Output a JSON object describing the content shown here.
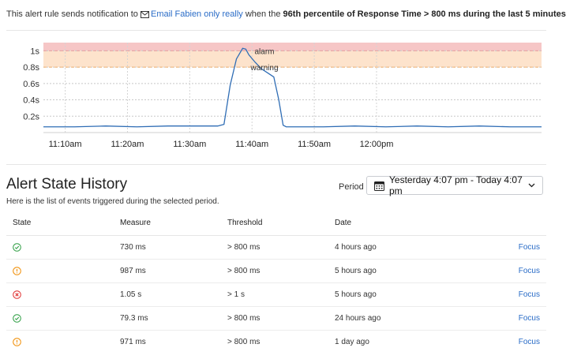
{
  "header": {
    "prefix": "This alert rule sends notification to",
    "channel_icon": "envelope-icon",
    "channel_link": "Email Fabien only really",
    "middle": "when the",
    "condition": "96th percentile of Response Time > 800 ms during the last 5 minutes"
  },
  "chart_data": {
    "type": "line",
    "x_ticks": [
      "11:10am",
      "11:20am",
      "11:30am",
      "11:40am",
      "11:50am",
      "12:00pm"
    ],
    "y_ticks": [
      "0.2s",
      "0.4s",
      "0.6s",
      "0.8s",
      "1s"
    ],
    "ylim": [
      0,
      1.1
    ],
    "grid": true,
    "thresholds": [
      {
        "label": "alarm",
        "value": 1.0,
        "color": "#f6c6c6"
      },
      {
        "label": "warning",
        "value": 0.8,
        "color": "#fde3cc"
      }
    ],
    "series": [
      {
        "color": "#2f6db5",
        "x_minutes": [
          0,
          5,
          10,
          15,
          20,
          25,
          28,
          29,
          30,
          31,
          32,
          32.5,
          33,
          34,
          35,
          36,
          37,
          37.8,
          38.5,
          39,
          45,
          50,
          55,
          60,
          65,
          70,
          75,
          80
        ],
        "y": [
          0.07,
          0.07,
          0.08,
          0.07,
          0.08,
          0.08,
          0.08,
          0.1,
          0.58,
          0.9,
          1.03,
          1.02,
          0.95,
          0.86,
          0.78,
          0.73,
          0.68,
          0.4,
          0.09,
          0.07,
          0.07,
          0.08,
          0.07,
          0.08,
          0.07,
          0.08,
          0.07,
          0.07
        ]
      }
    ]
  },
  "history": {
    "title": "Alert State History",
    "subtitle": "Here is the list of events triggered during the selected period.",
    "period_label": "Period",
    "period_value": "Yesterday 4:07 pm - Today 4:07 pm",
    "columns": [
      "State",
      "Measure",
      "Threshold",
      "Date"
    ],
    "rows": [
      {
        "state": "ok",
        "measure": "730 ms",
        "threshold": "> 800 ms",
        "date": "4 hours ago",
        "action": "Focus"
      },
      {
        "state": "warning",
        "measure": "987 ms",
        "threshold": "> 800 ms",
        "date": "5 hours ago",
        "action": "Focus"
      },
      {
        "state": "alarm",
        "measure": "1.05 s",
        "threshold": "> 1 s",
        "date": "5 hours ago",
        "action": "Focus"
      },
      {
        "state": "ok",
        "measure": "79.3 ms",
        "threshold": "> 800 ms",
        "date": "24 hours ago",
        "action": "Focus"
      },
      {
        "state": "warning",
        "measure": "971 ms",
        "threshold": "> 800 ms",
        "date": "1 day ago",
        "action": "Focus"
      }
    ],
    "state_colors": {
      "ok": "#2f9e44",
      "warning": "#f08c00",
      "alarm": "#e03131"
    }
  }
}
